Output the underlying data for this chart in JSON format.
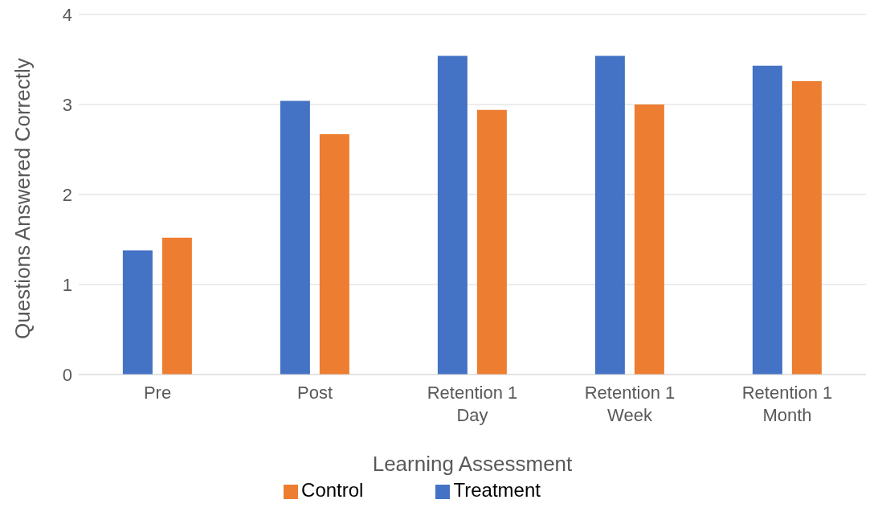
{
  "chart_data": {
    "type": "bar",
    "xlabel": "Learning Assessment",
    "ylabel": "Questions Answered Correctly",
    "categories": [
      "Pre",
      "Post",
      "Retention 1 Day",
      "Retention 1 Week",
      "Retention 1 Month"
    ],
    "series": [
      {
        "name": "Treatment",
        "color": "#4472c4",
        "values": [
          1.38,
          3.04,
          3.54,
          3.54,
          3.43
        ]
      },
      {
        "name": "Control",
        "color": "#ed7d31",
        "values": [
          1.52,
          2.67,
          2.94,
          3.0,
          3.26
        ]
      }
    ],
    "ylim": [
      0,
      4
    ],
    "yticks": [
      0,
      1,
      2,
      3,
      4
    ],
    "grid": "y",
    "legend": "bottom"
  }
}
